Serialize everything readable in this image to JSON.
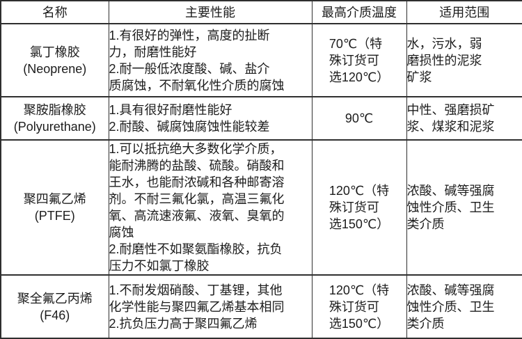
{
  "page": {
    "background_color": "#ffffff",
    "border_color": "#2f2f2f",
    "text_color": "#1c1c1c"
  },
  "table": {
    "headers": [
      "名称",
      "主要性能",
      "最高介质温度",
      "适用范围"
    ],
    "rows": [
      {
        "name": "氯丁橡胶\n(Neoprene)",
        "performance": "1.有很好的弹性，高度的扯断\n力，耐磨性能好\n2.耐一般低浓度酸、碱、盐介\n质腐蚀，不耐氧化性介质的腐蚀",
        "max_temp": "70℃（特\n殊订货可\n选120℃）",
        "application": "水，污水，弱\n磨损性的泥浆\n矿浆"
      },
      {
        "name": "聚胺脂橡胶\n(Polyurethane)",
        "performance": "1.具有很好耐磨性能好\n2.耐酸、碱腐蚀腐蚀性能较差",
        "max_temp": "90℃",
        "application": "中性、强磨损矿\n浆、煤浆和泥浆"
      },
      {
        "name": "聚四氟乙烯\n(PTFE)",
        "performance": "1.可以抵抗绝大多数化学介质，\n能耐沸腾的盐酸、硫酸。硝酸和\n王水，也能耐浓碱和各种邮寄溶\n剂。不耐三氟化氯，高温三氟化\n氧、高流速液氟、液氧、臭氧的\n腐蚀\n2.耐磨性不如聚氨酯橡胶，抗负\n压力不如氯丁橡胶",
        "max_temp": "120℃（特\n殊订货可\n选150℃）",
        "application": "浓酸、碱等强腐\n蚀性介质、卫生\n类介质"
      },
      {
        "name": "聚全氟乙丙烯\n(F46)",
        "performance": "1.不耐发烟硝酸、丁基锂，其他\n化学性能与聚四氟乙烯基本相同\n2.抗负压力高于聚四氟乙烯",
        "max_temp": "120℃（特\n殊订货可\n选150℃）",
        "application": "浓酸、碱等强腐\n蚀性介质、卫生\n类介质"
      }
    ]
  }
}
